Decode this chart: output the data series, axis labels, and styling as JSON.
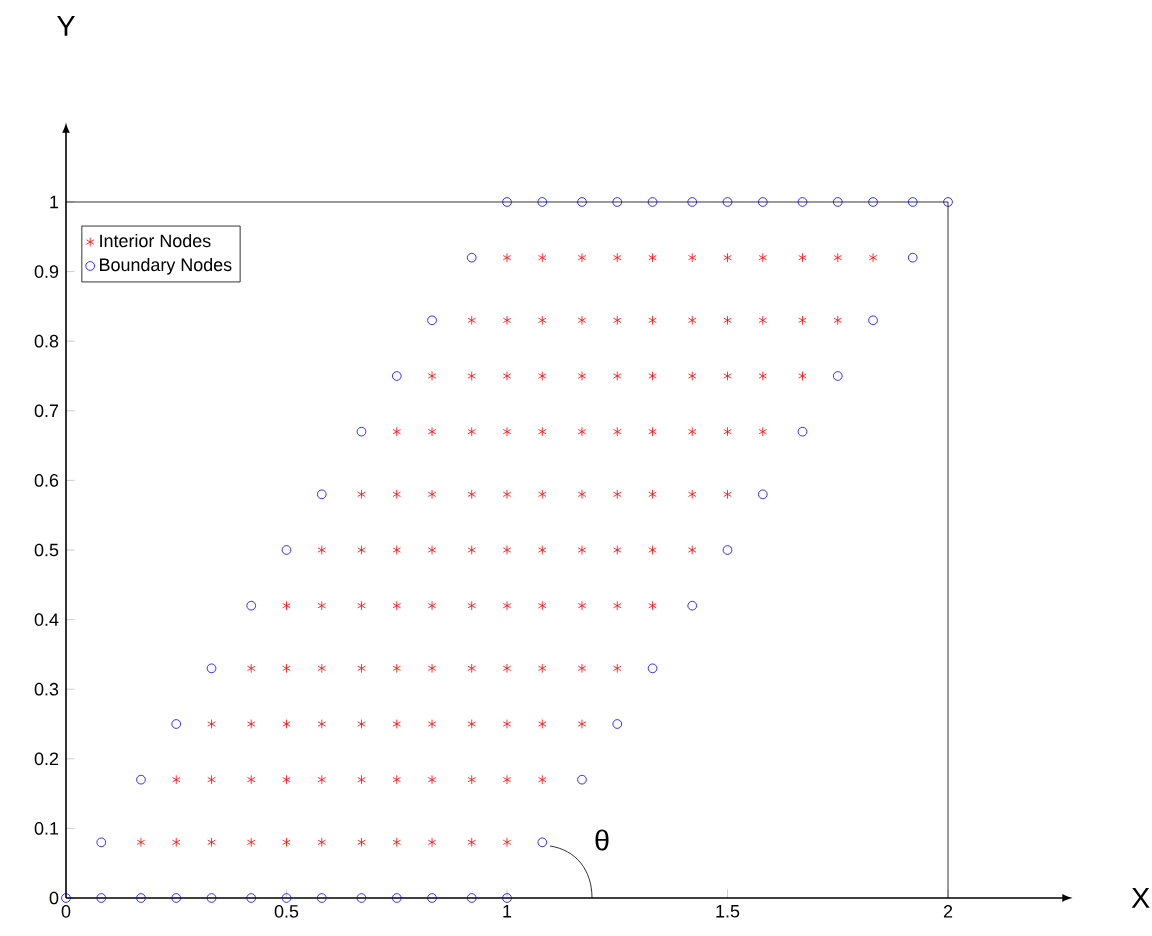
{
  "chart_data": {
    "type": "scatter",
    "xlim": [
      0,
      2.26
    ],
    "ylim": [
      0,
      1.1
    ],
    "ref_lines": [
      {
        "axis": "y",
        "value": 1,
        "color": "#000000"
      },
      {
        "axis": "x",
        "value": 2,
        "color": "#000000"
      }
    ],
    "xticks": [
      0,
      0.5,
      1,
      1.5,
      2
    ],
    "yticks": [
      0,
      0.1,
      0.2,
      0.3,
      0.4,
      0.5,
      0.6,
      0.7,
      0.8,
      0.9,
      1
    ],
    "grid": false,
    "legend": "top left",
    "annotations": [
      "θ",
      "X",
      "Y"
    ],
    "series": [
      {
        "name": "Interior Nodes",
        "color": "#ff0000",
        "marker": "cross",
        "x": [
          0.17,
          0.25,
          0.33,
          0.42,
          0.5,
          0.58,
          0.67,
          0.75,
          0.83,
          0.92,
          1,
          0.25,
          0.33,
          0.42,
          0.5,
          0.58,
          0.67,
          0.75,
          0.83,
          0.92,
          1,
          1.08,
          0.33,
          0.42,
          0.5,
          0.58,
          0.67,
          0.75,
          0.83,
          0.92,
          1,
          1.08,
          1.17,
          0.42,
          0.5,
          0.58,
          0.67,
          0.75,
          0.83,
          0.92,
          1,
          1.08,
          1.17,
          1.25,
          0.5,
          0.58,
          0.67,
          0.75,
          0.83,
          0.92,
          1,
          1.08,
          1.17,
          1.25,
          1.33,
          0.58,
          0.67,
          0.75,
          0.83,
          0.92,
          1,
          1.08,
          1.17,
          1.25,
          1.33,
          1.42,
          0.67,
          0.75,
          0.83,
          0.92,
          1,
          1.08,
          1.17,
          1.25,
          1.33,
          1.42,
          1.5,
          0.75,
          0.83,
          0.92,
          1,
          1.08,
          1.17,
          1.25,
          1.33,
          1.42,
          1.5,
          1.58,
          0.83,
          0.92,
          1,
          1.08,
          1.17,
          1.25,
          1.33,
          1.42,
          1.5,
          1.58,
          1.67,
          0.92,
          1,
          1.08,
          1.17,
          1.25,
          1.33,
          1.42,
          1.5,
          1.58,
          1.67,
          1.75,
          1,
          1.08,
          1.17,
          1.25,
          1.33,
          1.42,
          1.5,
          1.58,
          1.67,
          1.75,
          1.83
        ],
        "values": [
          0.08,
          0.08,
          0.08,
          0.08,
          0.08,
          0.08,
          0.08,
          0.08,
          0.08,
          0.08,
          0.08,
          0.17,
          0.17,
          0.17,
          0.17,
          0.17,
          0.17,
          0.17,
          0.17,
          0.17,
          0.17,
          0.17,
          0.25,
          0.25,
          0.25,
          0.25,
          0.25,
          0.25,
          0.25,
          0.25,
          0.25,
          0.25,
          0.25,
          0.33,
          0.33,
          0.33,
          0.33,
          0.33,
          0.33,
          0.33,
          0.33,
          0.33,
          0.33,
          0.33,
          0.42,
          0.42,
          0.42,
          0.42,
          0.42,
          0.42,
          0.42,
          0.42,
          0.42,
          0.42,
          0.42,
          0.5,
          0.5,
          0.5,
          0.5,
          0.5,
          0.5,
          0.5,
          0.5,
          0.5,
          0.5,
          0.5,
          0.58,
          0.58,
          0.58,
          0.58,
          0.58,
          0.58,
          0.58,
          0.58,
          0.58,
          0.58,
          0.58,
          0.67,
          0.67,
          0.67,
          0.67,
          0.67,
          0.67,
          0.67,
          0.67,
          0.67,
          0.67,
          0.67,
          0.75,
          0.75,
          0.75,
          0.75,
          0.75,
          0.75,
          0.75,
          0.75,
          0.75,
          0.75,
          0.75,
          0.83,
          0.83,
          0.83,
          0.83,
          0.83,
          0.83,
          0.83,
          0.83,
          0.83,
          0.83,
          0.83,
          0.92,
          0.92,
          0.92,
          0.92,
          0.92,
          0.92,
          0.92,
          0.92,
          0.92,
          0.92,
          0.92
        ]
      },
      {
        "name": "Boundary Nodes",
        "color": "#0000ff",
        "marker": "circle",
        "x": [
          0,
          0.08,
          0.17,
          0.25,
          0.33,
          0.42,
          0.5,
          0.58,
          0.67,
          0.75,
          0.83,
          0.92,
          1,
          0.08,
          1.08,
          0.17,
          1.17,
          0.25,
          1.25,
          0.33,
          1.33,
          0.42,
          1.42,
          0.5,
          1.5,
          0.58,
          1.58,
          0.67,
          1.67,
          0.75,
          1.75,
          0.83,
          1.83,
          0.92,
          1.92,
          1,
          1.08,
          1.17,
          1.25,
          1.33,
          1.42,
          1.5,
          1.58,
          1.67,
          1.75,
          1.83,
          1.92,
          2
        ],
        "values": [
          0,
          0,
          0,
          0,
          0,
          0,
          0,
          0,
          0,
          0,
          0,
          0,
          0,
          0.08,
          0.08,
          0.17,
          0.17,
          0.25,
          0.25,
          0.33,
          0.33,
          0.42,
          0.42,
          0.5,
          0.5,
          0.58,
          0.58,
          0.67,
          0.67,
          0.75,
          0.75,
          0.83,
          0.83,
          0.92,
          0.92,
          1,
          1,
          1,
          1,
          1,
          1,
          1,
          1,
          1,
          1,
          1,
          1,
          1
        ]
      }
    ]
  }
}
